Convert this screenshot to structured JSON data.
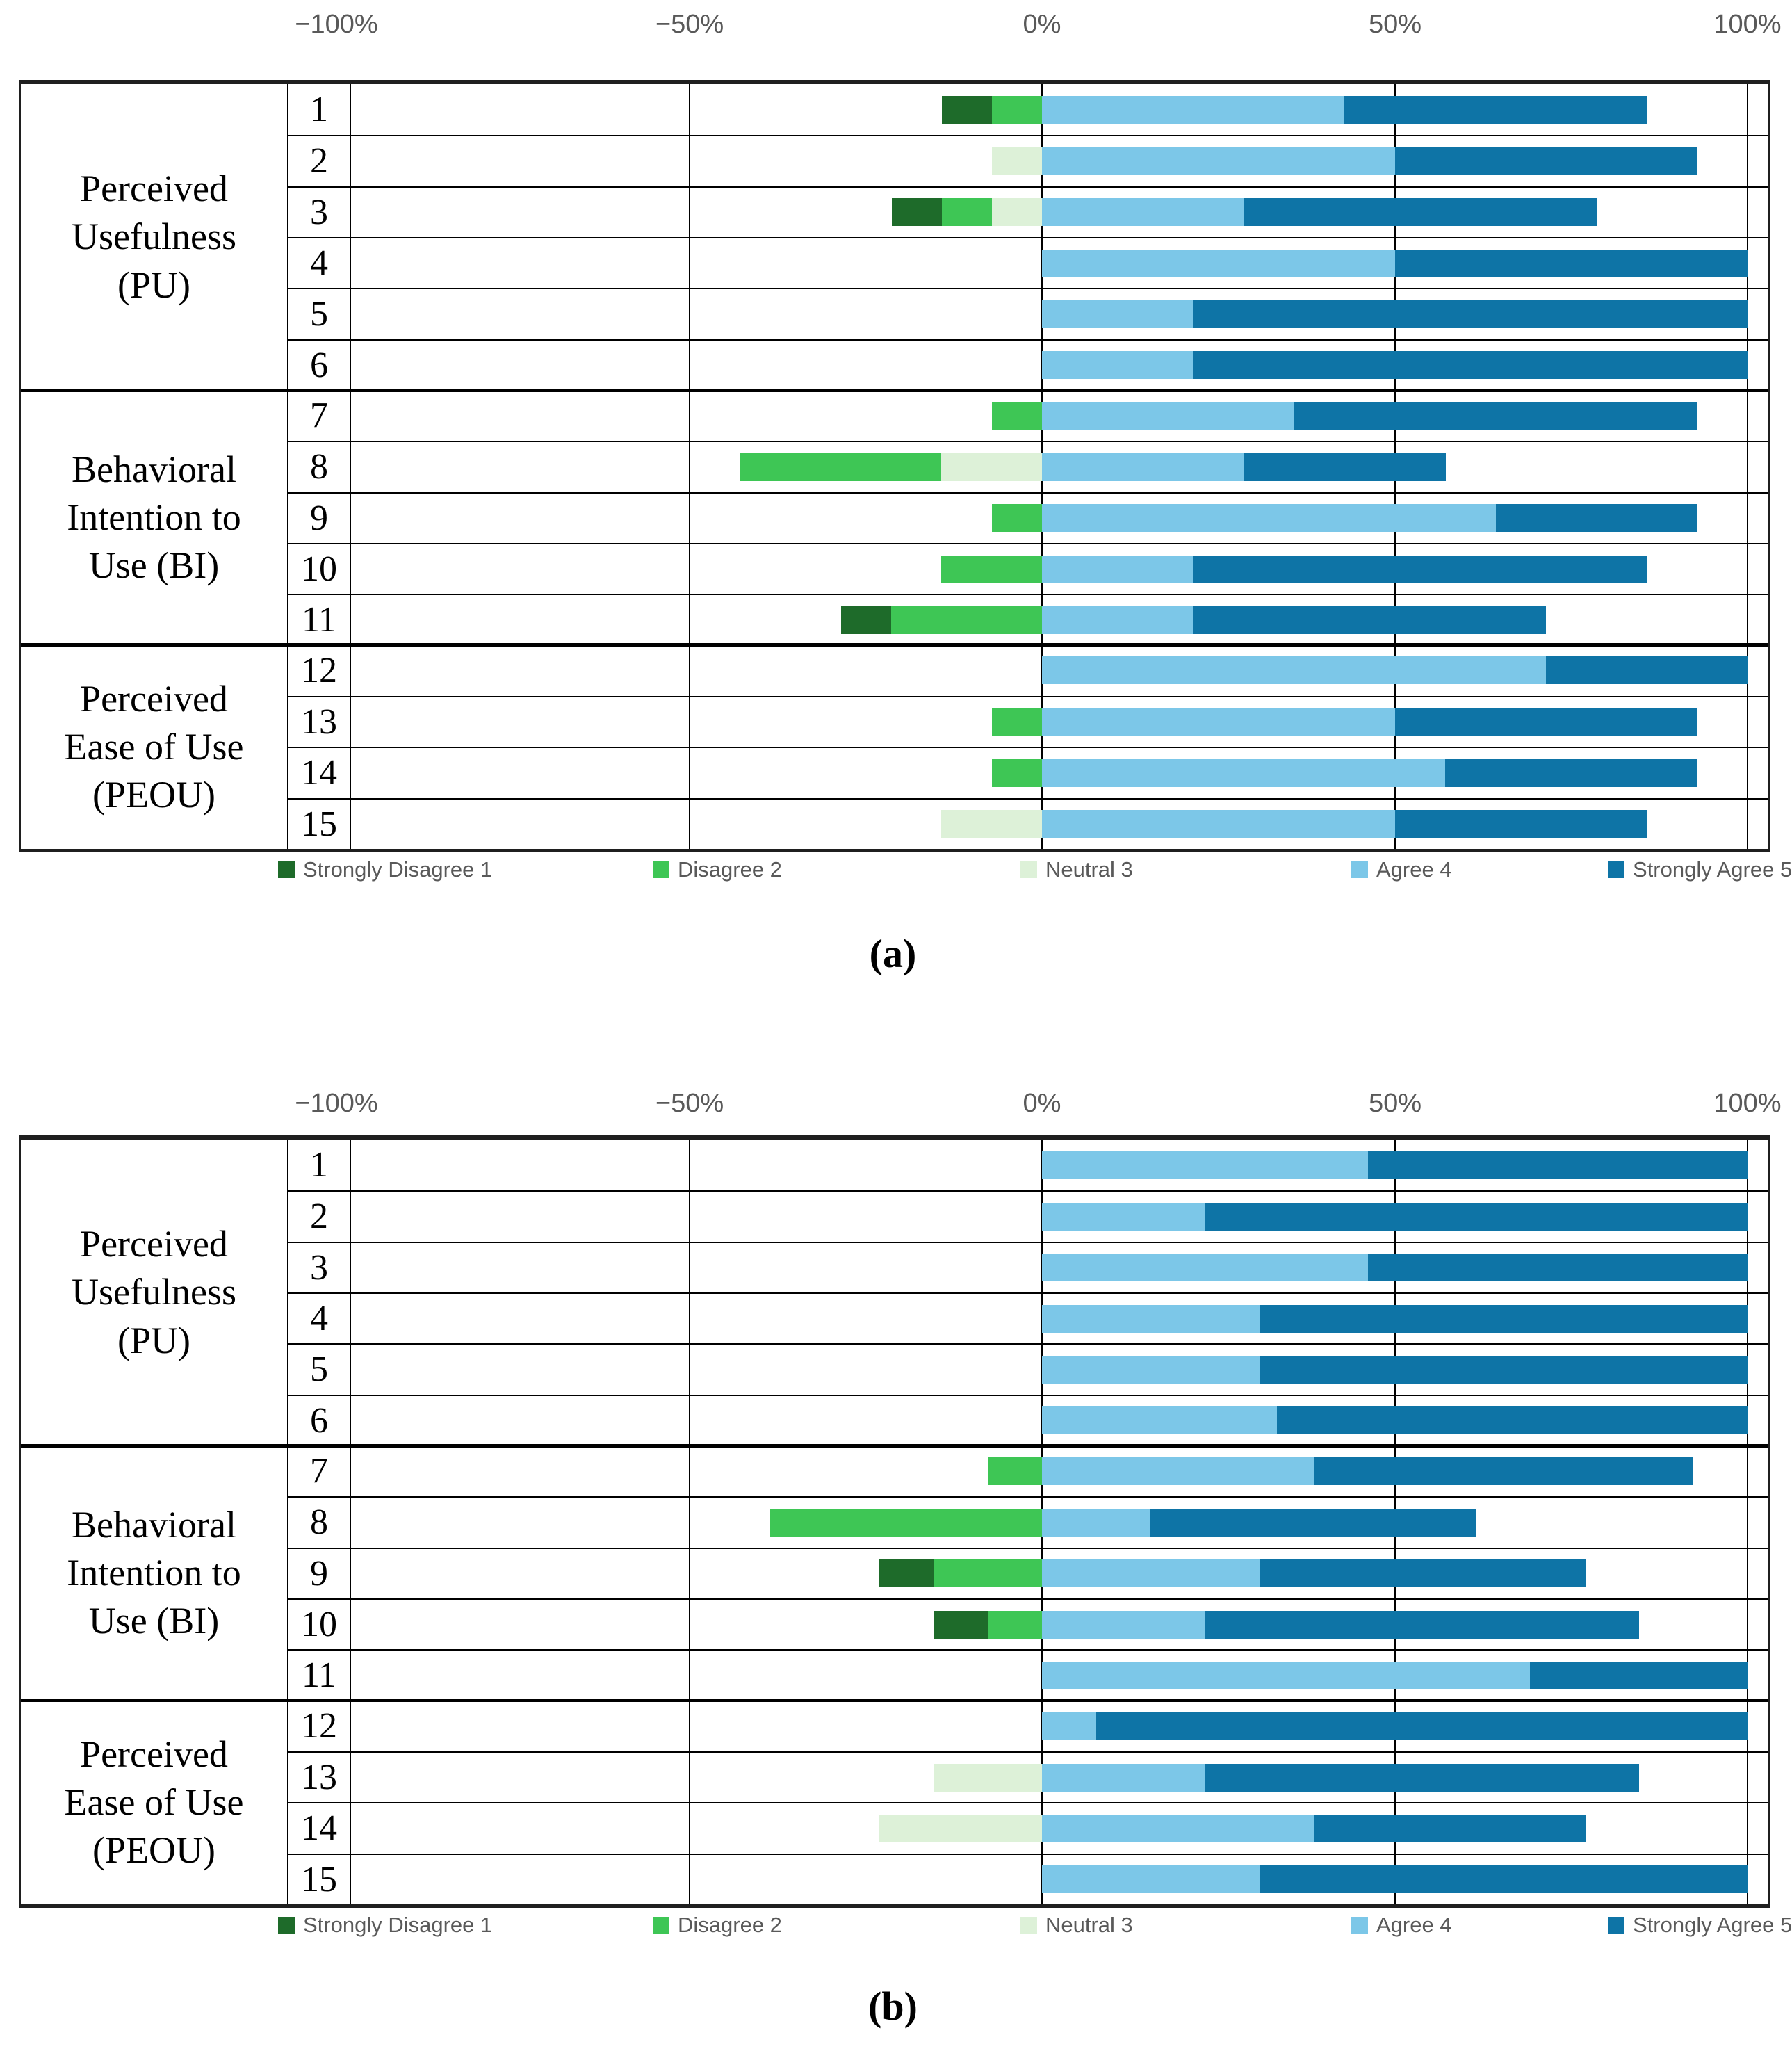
{
  "page": {
    "caption_a": "(a)",
    "caption_b": "(b)"
  },
  "colors": {
    "strongly_disagree": "#1e6b2a",
    "disagree": "#3ec655",
    "neutral": "#ddf1d8",
    "agree": "#7cc7e8",
    "strongly_agree": "#0e74a6",
    "axis_text": "#595959",
    "grid_line": "#000000"
  },
  "legend": [
    {
      "key": "strongly_disagree",
      "label": "Strongly Disagree 1",
      "color": "#1e6b2a"
    },
    {
      "key": "disagree",
      "label": "Disagree 2",
      "color": "#3ec655"
    },
    {
      "key": "neutral",
      "label": "Neutral 3",
      "color": "#ddf1d8"
    },
    {
      "key": "agree",
      "label": "Agree 4",
      "color": "#7cc7e8"
    },
    {
      "key": "strongly_agree",
      "label": "Strongly Agree 5",
      "color": "#0e74a6"
    }
  ],
  "chart_data": [
    {
      "panel": "a",
      "type": "bar",
      "subtype": "diverging_stacked_likert",
      "xlim": [
        -100,
        100
      ],
      "x_ticks": [
        "−100%",
        "−50%",
        "0%",
        "50%",
        "100%"
      ],
      "grid": true,
      "legend_position": "bottom",
      "series_order": [
        "strongly_disagree",
        "disagree",
        "neutral",
        "agree",
        "strongly_agree"
      ],
      "groups": [
        {
          "label": "Perceived Usefulness (PU)",
          "items": [
            "1",
            "2",
            "3",
            "4",
            "5",
            "6"
          ]
        },
        {
          "label": "Behavioral Intention to Use (BI)",
          "items": [
            "7",
            "8",
            "9",
            "10",
            "11"
          ]
        },
        {
          "label": "Perceived Ease of Use (PEOU)",
          "items": [
            "12",
            "13",
            "14",
            "15"
          ]
        }
      ],
      "rows": [
        {
          "item": "1",
          "strongly_disagree": 7.1,
          "disagree": 7.1,
          "neutral": 0,
          "agree": 42.9,
          "strongly_agree": 42.9
        },
        {
          "item": "2",
          "strongly_disagree": 0,
          "disagree": 0,
          "neutral": 7.1,
          "agree": 50,
          "strongly_agree": 42.9
        },
        {
          "item": "3",
          "strongly_disagree": 7.1,
          "disagree": 7.1,
          "neutral": 7.1,
          "agree": 28.6,
          "strongly_agree": 50
        },
        {
          "item": "4",
          "strongly_disagree": 0,
          "disagree": 0,
          "neutral": 0,
          "agree": 50,
          "strongly_agree": 50
        },
        {
          "item": "5",
          "strongly_disagree": 0,
          "disagree": 0,
          "neutral": 0,
          "agree": 21.4,
          "strongly_agree": 78.6
        },
        {
          "item": "6",
          "strongly_disagree": 0,
          "disagree": 0,
          "neutral": 0,
          "agree": 21.4,
          "strongly_agree": 78.6
        },
        {
          "item": "7",
          "strongly_disagree": 0,
          "disagree": 7.1,
          "neutral": 0,
          "agree": 35.7,
          "strongly_agree": 57.1
        },
        {
          "item": "8",
          "strongly_disagree": 0,
          "disagree": 28.6,
          "neutral": 14.3,
          "agree": 28.6,
          "strongly_agree": 28.6
        },
        {
          "item": "9",
          "strongly_disagree": 0,
          "disagree": 7.1,
          "neutral": 0,
          "agree": 64.3,
          "strongly_agree": 28.6
        },
        {
          "item": "10",
          "strongly_disagree": 0,
          "disagree": 14.3,
          "neutral": 0,
          "agree": 21.4,
          "strongly_agree": 64.3
        },
        {
          "item": "11",
          "strongly_disagree": 7.1,
          "disagree": 21.4,
          "neutral": 0,
          "agree": 21.4,
          "strongly_agree": 50
        },
        {
          "item": "12",
          "strongly_disagree": 0,
          "disagree": 0,
          "neutral": 0,
          "agree": 71.4,
          "strongly_agree": 28.6
        },
        {
          "item": "13",
          "strongly_disagree": 0,
          "disagree": 7.1,
          "neutral": 0,
          "agree": 50,
          "strongly_agree": 42.9
        },
        {
          "item": "14",
          "strongly_disagree": 0,
          "disagree": 7.1,
          "neutral": 0,
          "agree": 57.1,
          "strongly_agree": 35.7
        },
        {
          "item": "15",
          "strongly_disagree": 0,
          "disagree": 0,
          "neutral": 14.3,
          "agree": 50,
          "strongly_agree": 35.7
        }
      ]
    },
    {
      "panel": "b",
      "type": "bar",
      "subtype": "diverging_stacked_likert",
      "xlim": [
        -100,
        100
      ],
      "x_ticks": [
        "−100%",
        "−50%",
        "0%",
        "50%",
        "100%"
      ],
      "grid": true,
      "legend_position": "bottom",
      "series_order": [
        "strongly_disagree",
        "disagree",
        "neutral",
        "agree",
        "strongly_agree"
      ],
      "groups": [
        {
          "label": "Perceived Usefulness (PU)",
          "items": [
            "1",
            "2",
            "3",
            "4",
            "5",
            "6"
          ]
        },
        {
          "label": "Behavioral Intention to Use (BI)",
          "items": [
            "7",
            "8",
            "9",
            "10",
            "11"
          ]
        },
        {
          "label": "Perceived Ease of Use (PEOU)",
          "items": [
            "12",
            "13",
            "14",
            "15"
          ]
        }
      ],
      "rows": [
        {
          "item": "1",
          "strongly_disagree": 0,
          "disagree": 0,
          "neutral": 0,
          "agree": 46.2,
          "strongly_agree": 53.8
        },
        {
          "item": "2",
          "strongly_disagree": 0,
          "disagree": 0,
          "neutral": 0,
          "agree": 23.1,
          "strongly_agree": 76.9
        },
        {
          "item": "3",
          "strongly_disagree": 0,
          "disagree": 0,
          "neutral": 0,
          "agree": 46.2,
          "strongly_agree": 53.8
        },
        {
          "item": "4",
          "strongly_disagree": 0,
          "disagree": 0,
          "neutral": 0,
          "agree": 30.8,
          "strongly_agree": 69.2
        },
        {
          "item": "5",
          "strongly_disagree": 0,
          "disagree": 0,
          "neutral": 0,
          "agree": 30.8,
          "strongly_agree": 69.2
        },
        {
          "item": "6",
          "strongly_disagree": 0,
          "disagree": 0,
          "neutral": 0,
          "agree": 33.3,
          "strongly_agree": 66.7
        },
        {
          "item": "7",
          "strongly_disagree": 0,
          "disagree": 7.7,
          "neutral": 0,
          "agree": 38.5,
          "strongly_agree": 53.8
        },
        {
          "item": "8",
          "strongly_disagree": 0,
          "disagree": 38.5,
          "neutral": 0,
          "agree": 15.4,
          "strongly_agree": 46.2
        },
        {
          "item": "9",
          "strongly_disagree": 7.7,
          "disagree": 15.4,
          "neutral": 0,
          "agree": 30.8,
          "strongly_agree": 46.2
        },
        {
          "item": "10",
          "strongly_disagree": 7.7,
          "disagree": 7.7,
          "neutral": 0,
          "agree": 23.1,
          "strongly_agree": 61.5
        },
        {
          "item": "11",
          "strongly_disagree": 0,
          "disagree": 0,
          "neutral": 0,
          "agree": 69.2,
          "strongly_agree": 30.8
        },
        {
          "item": "12",
          "strongly_disagree": 0,
          "disagree": 0,
          "neutral": 0,
          "agree": 7.7,
          "strongly_agree": 92.3
        },
        {
          "item": "13",
          "strongly_disagree": 0,
          "disagree": 0,
          "neutral": 15.4,
          "agree": 23.1,
          "strongly_agree": 61.5
        },
        {
          "item": "14",
          "strongly_disagree": 0,
          "disagree": 0,
          "neutral": 23.1,
          "agree": 38.5,
          "strongly_agree": 38.5
        },
        {
          "item": "15",
          "strongly_disagree": 0,
          "disagree": 0,
          "neutral": 0,
          "agree": 30.8,
          "strongly_agree": 69.2
        }
      ]
    }
  ]
}
